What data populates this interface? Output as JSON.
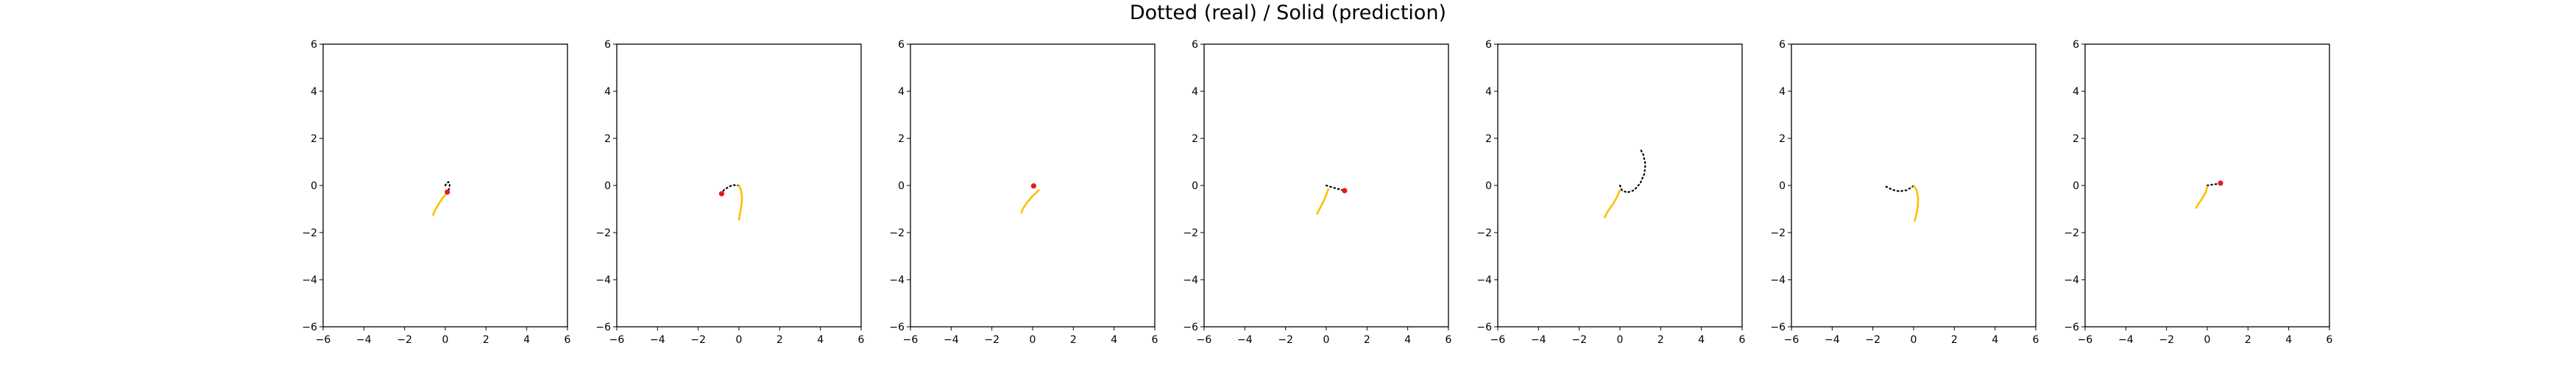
{
  "title": "Dotted (real) / Solid (prediction)",
  "colors": {
    "real_line": "#000000",
    "prediction_line": "#ffbf00",
    "prediction_line_alt": "#ffd400",
    "marker": "#e41a1c",
    "frame": "#000000",
    "background": "#ffffff"
  },
  "chart_data": [
    {
      "type": "line",
      "xlim": [
        -6,
        6
      ],
      "ylim": [
        -6,
        6
      ],
      "xticks": [
        -6,
        -4,
        -2,
        0,
        2,
        4,
        6
      ],
      "yticks": [
        -6,
        -4,
        -2,
        0,
        2,
        4,
        6
      ],
      "grid": false,
      "series": [
        {
          "style": "dotted",
          "points": [
            [
              0.0,
              0.0
            ],
            [
              0.05,
              0.08
            ],
            [
              0.15,
              0.15
            ],
            [
              0.22,
              0.05
            ],
            [
              0.18,
              -0.15
            ],
            [
              0.1,
              -0.3
            ]
          ]
        },
        {
          "style": "solid",
          "points": [
            [
              0.1,
              -0.3
            ],
            [
              -0.1,
              -0.5
            ],
            [
              -0.3,
              -0.75
            ],
            [
              -0.5,
              -1.05
            ],
            [
              -0.6,
              -1.25
            ]
          ]
        }
      ],
      "marker": [
        0.1,
        -0.28
      ]
    },
    {
      "type": "line",
      "xlim": [
        -6,
        6
      ],
      "ylim": [
        -6,
        6
      ],
      "xticks": [
        -6,
        -4,
        -2,
        0,
        2,
        4,
        6
      ],
      "yticks": [
        -6,
        -4,
        -2,
        0,
        2,
        4,
        6
      ],
      "grid": false,
      "series": [
        {
          "style": "dotted",
          "points": [
            [
              0.0,
              0.0
            ],
            [
              -0.3,
              0.02
            ],
            [
              -0.55,
              -0.08
            ],
            [
              -0.75,
              -0.2
            ],
            [
              -0.85,
              -0.35
            ]
          ]
        },
        {
          "style": "solid",
          "points": [
            [
              0.0,
              0.0
            ],
            [
              0.1,
              -0.2
            ],
            [
              0.15,
              -0.5
            ],
            [
              0.12,
              -0.85
            ],
            [
              0.05,
              -1.2
            ],
            [
              0.0,
              -1.45
            ]
          ]
        }
      ],
      "marker": [
        -0.85,
        -0.35
      ]
    },
    {
      "type": "line",
      "xlim": [
        -6,
        6
      ],
      "ylim": [
        -6,
        6
      ],
      "xticks": [
        -6,
        -4,
        -2,
        0,
        2,
        4,
        6
      ],
      "yticks": [
        -6,
        -4,
        -2,
        0,
        2,
        4,
        6
      ],
      "grid": false,
      "series": [
        {
          "style": "dotted",
          "points": [
            [
              0.0,
              0.0
            ],
            [
              0.08,
              -0.04
            ],
            [
              0.15,
              -0.1
            ]
          ]
        },
        {
          "style": "solid",
          "points": [
            [
              0.3,
              -0.2
            ],
            [
              0.0,
              -0.45
            ],
            [
              -0.25,
              -0.7
            ],
            [
              -0.45,
              -0.95
            ],
            [
              -0.55,
              -1.15
            ]
          ]
        }
      ],
      "marker": [
        0.05,
        -0.02
      ]
    },
    {
      "type": "line",
      "xlim": [
        -6,
        6
      ],
      "ylim": [
        -6,
        6
      ],
      "xticks": [
        -6,
        -4,
        -2,
        0,
        2,
        4,
        6
      ],
      "yticks": [
        -6,
        -4,
        -2,
        0,
        2,
        4,
        6
      ],
      "grid": false,
      "series": [
        {
          "style": "dotted",
          "points": [
            [
              0.0,
              0.0
            ],
            [
              0.3,
              -0.08
            ],
            [
              0.6,
              -0.15
            ],
            [
              0.9,
              -0.22
            ]
          ]
        },
        {
          "style": "solid",
          "points": [
            [
              0.1,
              -0.15
            ],
            [
              0.0,
              -0.4
            ],
            [
              -0.15,
              -0.7
            ],
            [
              -0.3,
              -0.95
            ],
            [
              -0.45,
              -1.2
            ]
          ]
        }
      ],
      "marker": [
        0.9,
        -0.22
      ]
    },
    {
      "type": "line",
      "xlim": [
        -6,
        6
      ],
      "ylim": [
        -6,
        6
      ],
      "xticks": [
        -6,
        -4,
        -2,
        0,
        2,
        4,
        6
      ],
      "yticks": [
        -6,
        -4,
        -2,
        0,
        2,
        4,
        6
      ],
      "grid": false,
      "series": [
        {
          "style": "dotted",
          "points": [
            [
              0.0,
              0.0
            ],
            [
              0.1,
              -0.2
            ],
            [
              0.35,
              -0.3
            ],
            [
              0.7,
              -0.2
            ],
            [
              1.0,
              0.1
            ],
            [
              1.2,
              0.5
            ],
            [
              1.25,
              0.9
            ],
            [
              1.15,
              1.3
            ],
            [
              1.0,
              1.55
            ]
          ]
        },
        {
          "style": "solid",
          "points": [
            [
              0.0,
              -0.2
            ],
            [
              -0.15,
              -0.5
            ],
            [
              -0.35,
              -0.8
            ],
            [
              -0.6,
              -1.1
            ],
            [
              -0.75,
              -1.35
            ]
          ]
        }
      ],
      "marker": null
    },
    {
      "type": "line",
      "xlim": [
        -6,
        6
      ],
      "ylim": [
        -6,
        6
      ],
      "xticks": [
        -6,
        -4,
        -2,
        0,
        2,
        4,
        6
      ],
      "yticks": [
        -6,
        -4,
        -2,
        0,
        2,
        4,
        6
      ],
      "grid": false,
      "series": [
        {
          "style": "dotted",
          "points": [
            [
              -1.35,
              -0.05
            ],
            [
              -1.05,
              -0.18
            ],
            [
              -0.7,
              -0.25
            ],
            [
              -0.35,
              -0.2
            ],
            [
              -0.1,
              -0.08
            ],
            [
              0.0,
              0.0
            ]
          ]
        },
        {
          "style": "solid",
          "points": [
            [
              0.0,
              0.0
            ],
            [
              0.15,
              -0.2
            ],
            [
              0.22,
              -0.55
            ],
            [
              0.2,
              -0.95
            ],
            [
              0.12,
              -1.3
            ],
            [
              0.05,
              -1.5
            ]
          ]
        }
      ],
      "marker": null
    },
    {
      "type": "line",
      "xlim": [
        -6,
        6
      ],
      "ylim": [
        -6,
        6
      ],
      "xticks": [
        -6,
        -4,
        -2,
        0,
        2,
        4,
        6
      ],
      "yticks": [
        -6,
        -4,
        -2,
        0,
        2,
        4,
        6
      ],
      "grid": false,
      "series": [
        {
          "style": "dotted",
          "points": [
            [
              0.0,
              0.0
            ],
            [
              0.2,
              0.03
            ],
            [
              0.45,
              0.06
            ],
            [
              0.65,
              0.1
            ]
          ]
        },
        {
          "style": "solid",
          "points": [
            [
              0.0,
              -0.05
            ],
            [
              -0.08,
              -0.3
            ],
            [
              -0.25,
              -0.55
            ],
            [
              -0.45,
              -0.8
            ],
            [
              -0.55,
              -0.95
            ]
          ]
        }
      ],
      "marker": [
        0.65,
        0.1
      ]
    }
  ]
}
